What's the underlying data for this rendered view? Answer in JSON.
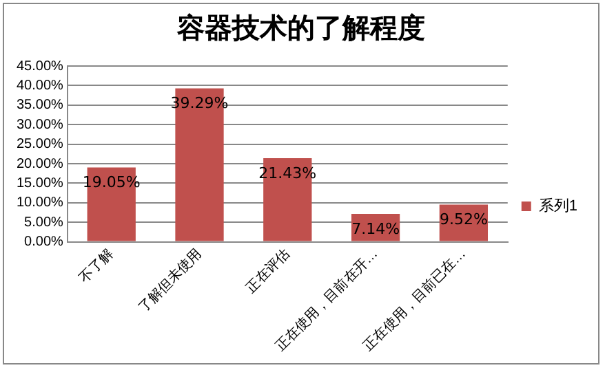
{
  "chart_data": {
    "type": "bar",
    "title": "容器技术的了解程度",
    "categories": [
      "不了解",
      "了解但未使用",
      "正在评估",
      "正在使用，目前在开…",
      "正在使用，目前已在…"
    ],
    "series": [
      {
        "name": "系列1",
        "color": "#c0504d",
        "values": [
          19.05,
          39.29,
          21.43,
          7.14,
          9.52
        ],
        "value_labels": [
          "19.05%",
          "39.29%",
          "21.43%",
          "7.14%",
          "9.52%"
        ]
      }
    ],
    "ylim": [
      0,
      45
    ],
    "yticks": [
      {
        "value": 0,
        "label": "0.00%"
      },
      {
        "value": 5,
        "label": "5.00%"
      },
      {
        "value": 10,
        "label": "10.00%"
      },
      {
        "value": 15,
        "label": "15.00%"
      },
      {
        "value": 20,
        "label": "20.00%"
      },
      {
        "value": 25,
        "label": "25.00%"
      },
      {
        "value": 30,
        "label": "30.00%"
      },
      {
        "value": 35,
        "label": "35.00%"
      },
      {
        "value": 40,
        "label": "40.00%"
      },
      {
        "value": 45,
        "label": "45.00%"
      }
    ],
    "grid": "y",
    "legend": "right"
  }
}
